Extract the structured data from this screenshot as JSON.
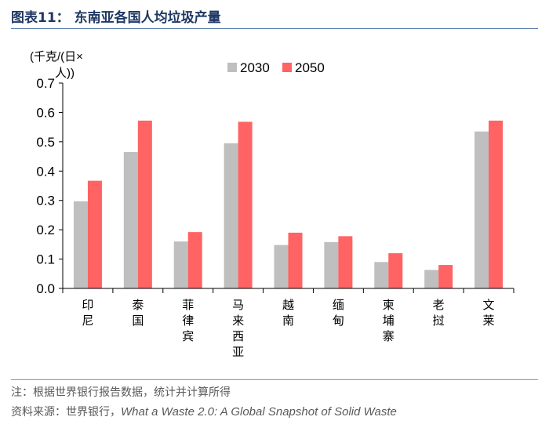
{
  "figure": {
    "title": "图表11：  东南亚各国人均垃圾产量",
    "note": "注：根据世界银行报告数据，统计并计算所得",
    "source_prefix": "资料来源：世界银行，",
    "source_title": "What a Waste 2.0: A Global Snapshot of Solid Waste"
  },
  "chart_data": {
    "type": "bar",
    "ylabel": "(千克/(日×人))",
    "ylim": [
      0,
      0.7
    ],
    "yticks": [
      "0.0",
      "0.1",
      "0.2",
      "0.3",
      "0.4",
      "0.5",
      "0.6",
      "0.7"
    ],
    "categories": [
      "印尼",
      "泰国",
      "菲律宾",
      "马来西亚",
      "越南",
      "缅甸",
      "柬埔寨",
      "老挝",
      "文莱"
    ],
    "series": [
      {
        "name": "2030",
        "color": "#bfbfbf",
        "values": [
          0.297,
          0.465,
          0.16,
          0.495,
          0.148,
          0.158,
          0.09,
          0.063,
          0.535
        ]
      },
      {
        "name": "2050",
        "color": "#ff6363",
        "values": [
          0.367,
          0.572,
          0.192,
          0.568,
          0.19,
          0.178,
          0.12,
          0.08,
          0.572
        ]
      }
    ],
    "grid": false,
    "legend": "top"
  }
}
